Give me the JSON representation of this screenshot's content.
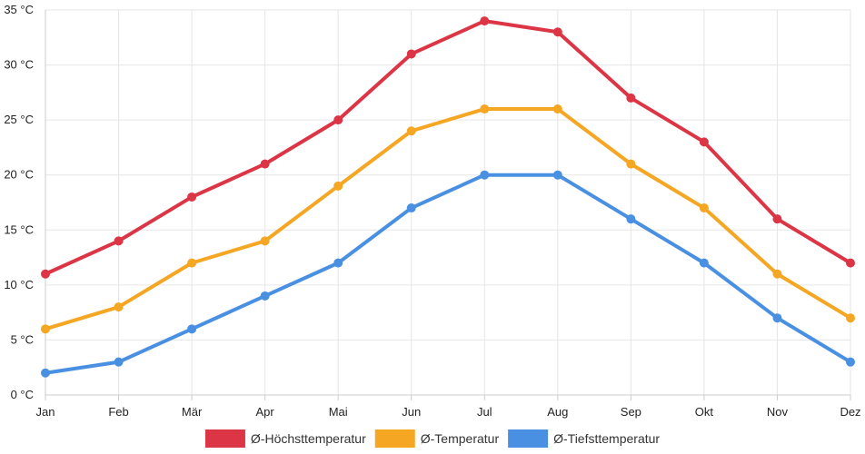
{
  "chart_data": {
    "type": "line",
    "categories": [
      "Jan",
      "Feb",
      "Mär",
      "Apr",
      "Mai",
      "Jun",
      "Jul",
      "Aug",
      "Sep",
      "Okt",
      "Nov",
      "Dez"
    ],
    "y_tick_labels": [
      "0 °C",
      "5 °C",
      "10 °C",
      "15 °C",
      "20 °C",
      "25 °C",
      "30 °C",
      "35 °C"
    ],
    "ylim": [
      0,
      35
    ],
    "grid": true,
    "legend_position": "bottom",
    "series": [
      {
        "name": "Ø-Höchsttemperatur",
        "color": "#dc3545",
        "values": [
          11,
          14,
          18,
          21,
          25,
          31,
          34,
          33,
          27,
          23,
          16,
          12
        ]
      },
      {
        "name": "Ø-Temperatur",
        "color": "#f5a623",
        "values": [
          6,
          8,
          12,
          14,
          19,
          24,
          26,
          26,
          21,
          17,
          11,
          7
        ]
      },
      {
        "name": "Ø-Tiefsttemperatur",
        "color": "#4a90e2",
        "values": [
          2,
          3,
          6,
          9,
          12,
          17,
          20,
          20,
          16,
          12,
          7,
          3
        ]
      }
    ]
  }
}
